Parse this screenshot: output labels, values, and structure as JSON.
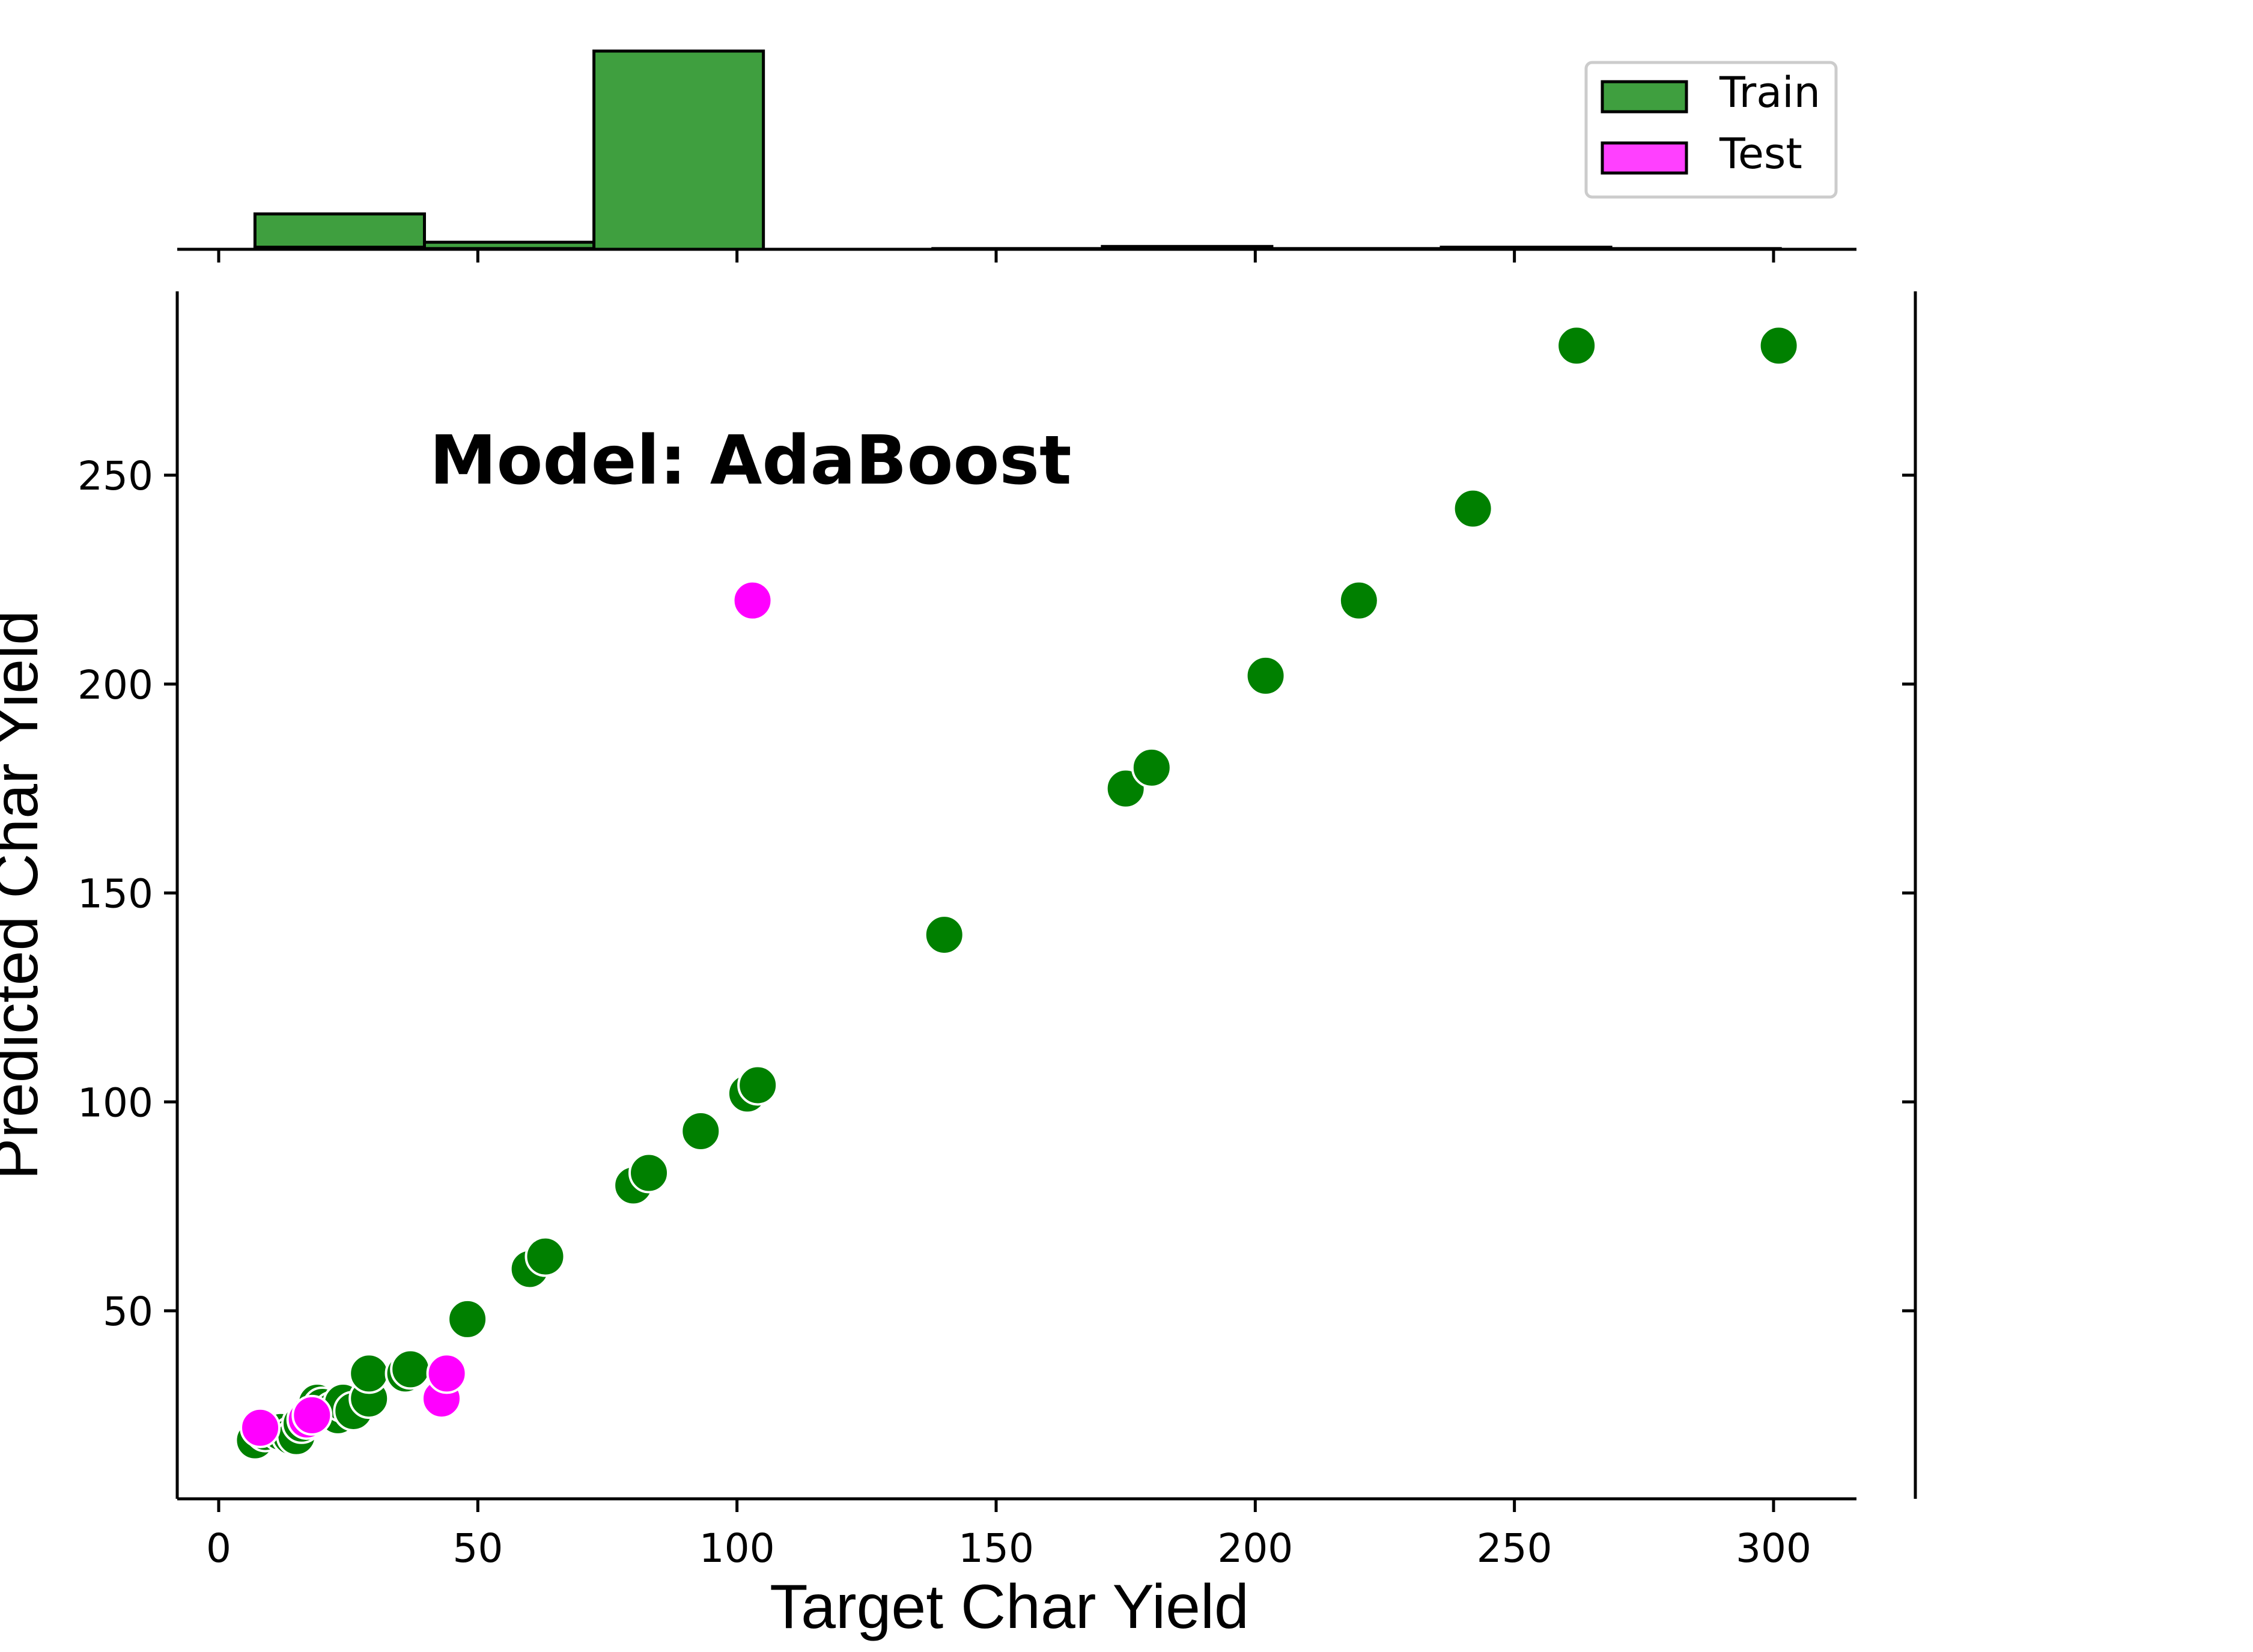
{
  "chart_data": {
    "type": "scatter",
    "annotation": "Model: AdaBoost",
    "xlabel": "Target Char Yield",
    "ylabel": "Predicted Char Yield",
    "xlim": [
      -8,
      316
    ],
    "ylim": [
      5,
      294
    ],
    "x_ticks": [
      0,
      50,
      100,
      150,
      200,
      250,
      300
    ],
    "y_ticks": [
      50,
      100,
      150,
      200,
      250
    ],
    "grid": false,
    "legend_position": "top-right",
    "colors": {
      "train": "#008000",
      "test": "#ff00ff",
      "train_hist": "#3f9f3f",
      "test_hist": "#ff40ff"
    },
    "series": [
      {
        "name": "Train",
        "points": [
          [
            7,
            19
          ],
          [
            9,
            21
          ],
          [
            12,
            21
          ],
          [
            14,
            20
          ],
          [
            15,
            20
          ],
          [
            16,
            23
          ],
          [
            18,
            26
          ],
          [
            19,
            28
          ],
          [
            20,
            27
          ],
          [
            22,
            26
          ],
          [
            23,
            25
          ],
          [
            24,
            28
          ],
          [
            26,
            26
          ],
          [
            29,
            29
          ],
          [
            29,
            35
          ],
          [
            36,
            35
          ],
          [
            37,
            36
          ],
          [
            48,
            48
          ],
          [
            60,
            60
          ],
          [
            63,
            63
          ],
          [
            80,
            80
          ],
          [
            83,
            83
          ],
          [
            93,
            93
          ],
          [
            102,
            102
          ],
          [
            104,
            104
          ],
          [
            140,
            140
          ],
          [
            175,
            175
          ],
          [
            180,
            180
          ],
          [
            202,
            202
          ],
          [
            220,
            220
          ],
          [
            242,
            242
          ],
          [
            262,
            281
          ],
          [
            301,
            281
          ]
        ]
      },
      {
        "name": "Test",
        "points": [
          [
            8,
            22
          ],
          [
            17,
            24
          ],
          [
            18,
            25
          ],
          [
            43,
            29
          ],
          [
            44,
            35
          ],
          [
            103,
            220
          ]
        ]
      }
    ],
    "histogram_x": {
      "bins": [
        {
          "x0": 7,
          "x1": 39.7,
          "train": 5,
          "test": 0.3
        },
        {
          "x0": 39.7,
          "x1": 72.4,
          "train": 1,
          "test": 0.1
        },
        {
          "x0": 72.4,
          "x1": 105.1,
          "train": 28,
          "test": 0
        },
        {
          "x0": 137.8,
          "x1": 170.5,
          "train": 0.1,
          "test": 0
        },
        {
          "x0": 170.5,
          "x1": 203.2,
          "train": 0.4,
          "test": 0
        },
        {
          "x0": 203.2,
          "x1": 235.9,
          "train": 0.1,
          "test": 0
        },
        {
          "x0": 235.9,
          "x1": 268.6,
          "train": 0.3,
          "test": 0
        },
        {
          "x0": 268.6,
          "x1": 301.3,
          "train": 0.1,
          "test": 0
        }
      ],
      "max_count": 28
    }
  }
}
